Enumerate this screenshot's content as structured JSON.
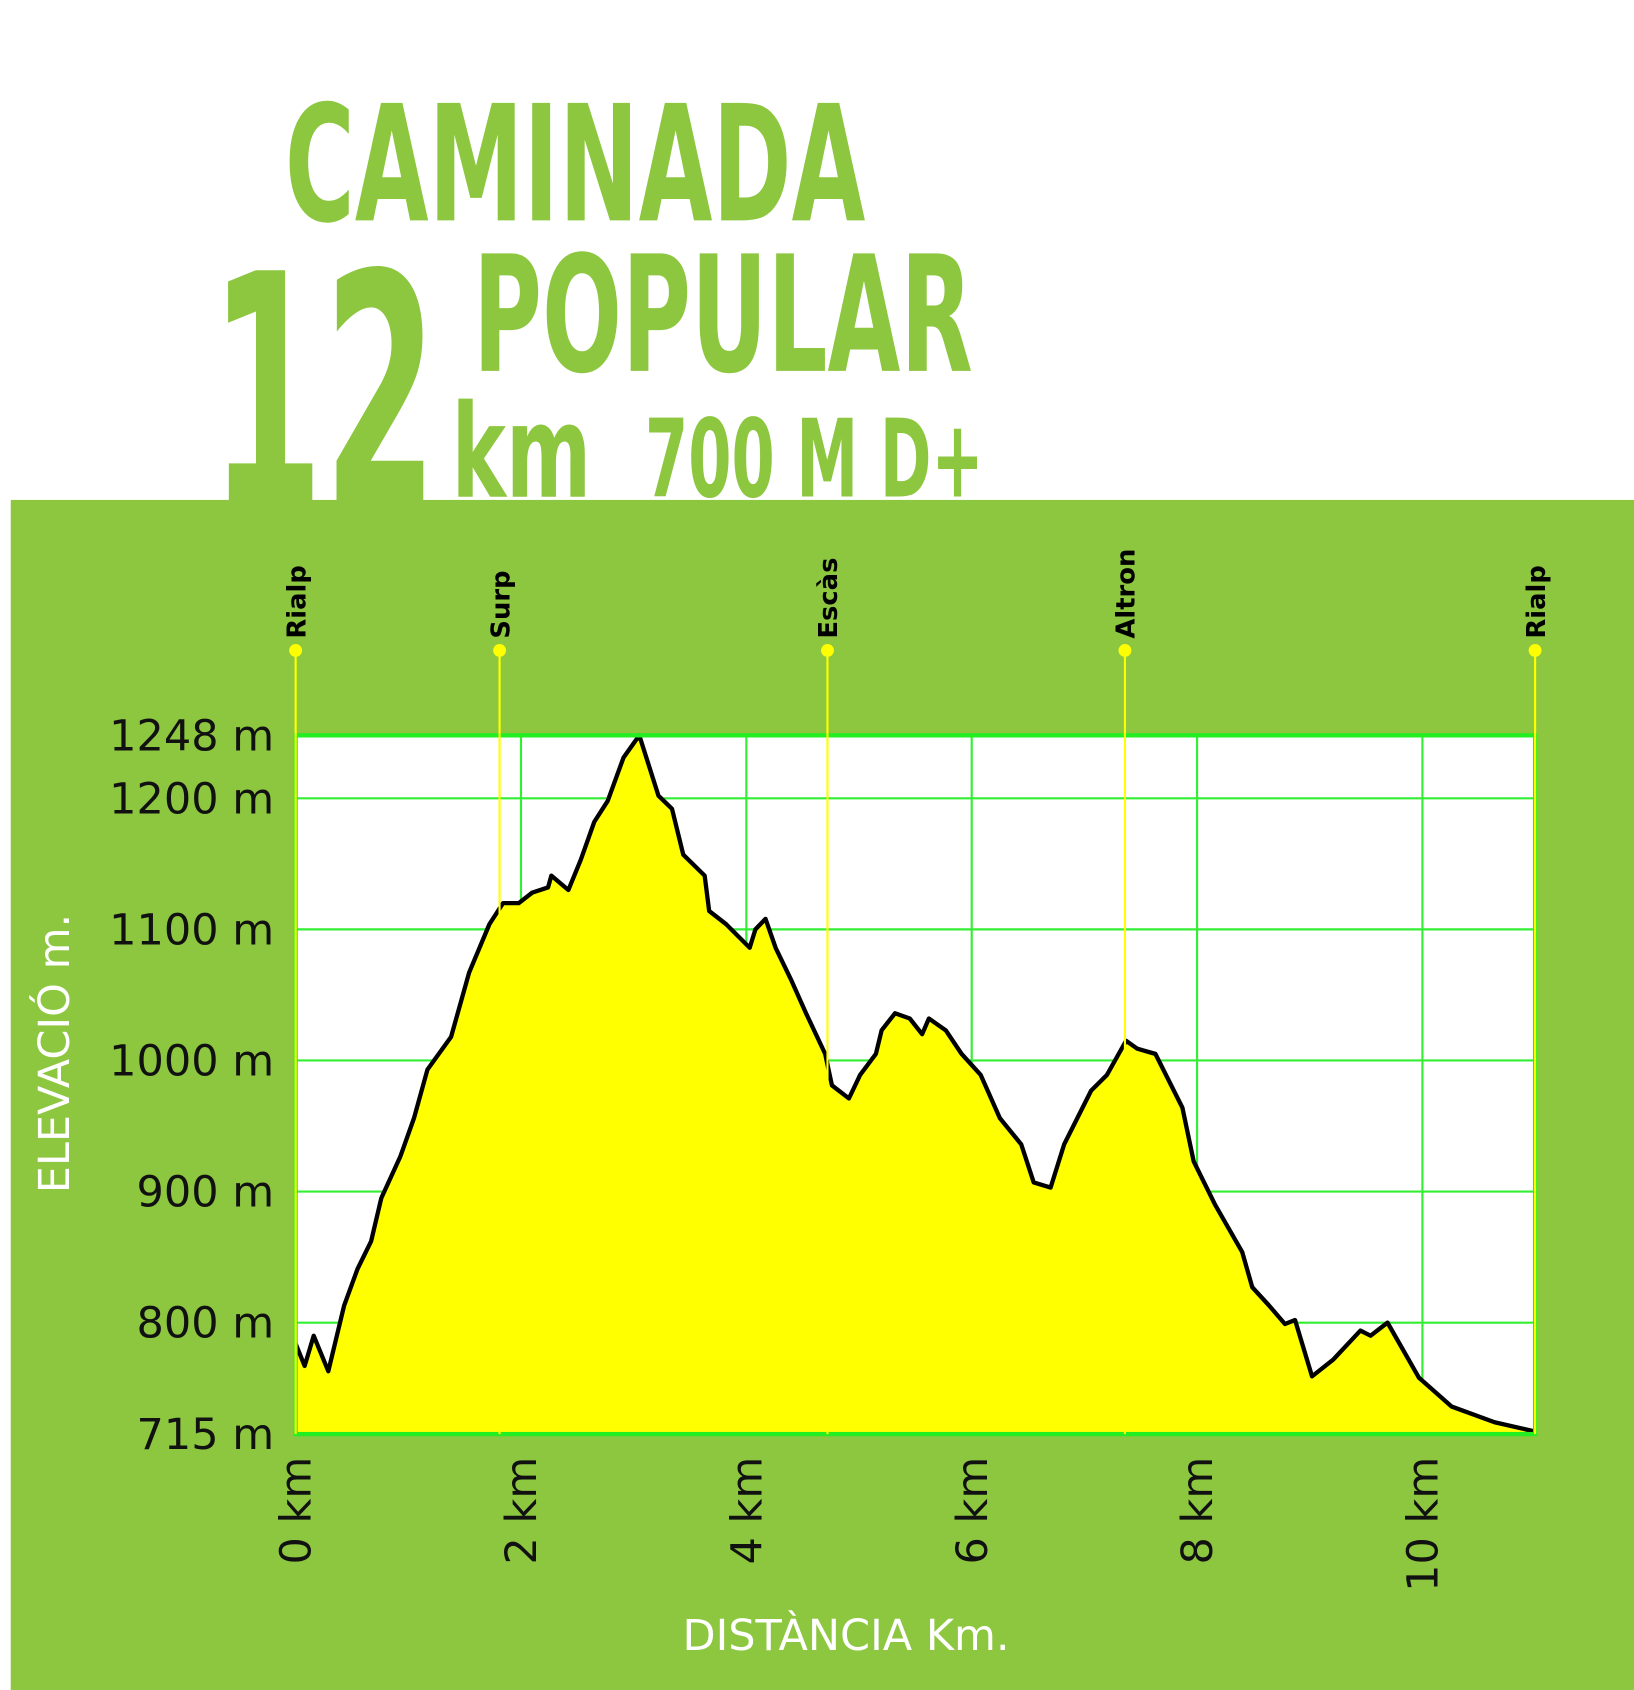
{
  "chart_data": {
    "type": "area",
    "title_lines": [
      "CAMINADA",
      "12",
      "POPULAR",
      "km",
      "700 M D+"
    ],
    "y_label": "ELEVACIÓ m.",
    "x_label": "DISTÀNCIA Km.",
    "xlim": [
      0,
      11
    ],
    "ylim": [
      715,
      1248
    ],
    "xticks": [
      {
        "value": 0,
        "label": "0 km"
      },
      {
        "value": 2,
        "label": "2 km"
      },
      {
        "value": 4,
        "label": "4 km"
      },
      {
        "value": 6,
        "label": "6 km"
      },
      {
        "value": 8,
        "label": "8 km"
      },
      {
        "value": 10,
        "label": "10 km"
      }
    ],
    "yticks": [
      {
        "value": 715,
        "label": "715 m"
      },
      {
        "value": 800,
        "label": "800 m"
      },
      {
        "value": 900,
        "label": "900 m"
      },
      {
        "value": 1000,
        "label": "1000 m"
      },
      {
        "value": 1100,
        "label": "1100 m"
      },
      {
        "value": 1200,
        "label": "1200 m"
      },
      {
        "value": 1248,
        "label": "1248 m"
      }
    ],
    "grid": true,
    "fill_color": "#ffff00",
    "line_color": "#000000",
    "x": [
      0,
      0.08,
      0.16,
      0.29,
      0.43,
      0.55,
      0.67,
      0.76,
      0.93,
      1.05,
      1.17,
      1.38,
      1.54,
      1.72,
      1.84,
      1.98,
      2.1,
      2.24,
      2.27,
      2.42,
      2.53,
      2.65,
      2.77,
      2.91,
      3.05,
      3.22,
      3.34,
      3.44,
      3.63,
      3.67,
      3.82,
      4.03,
      4.08,
      4.17,
      4.26,
      4.4,
      4.53,
      4.7,
      4.76,
      4.91,
      5.01,
      5.15,
      5.2,
      5.32,
      5.45,
      5.56,
      5.62,
      5.77,
      5.91,
      6.08,
      6.25,
      6.44,
      6.55,
      6.7,
      6.82,
      7.06,
      7.2,
      7.37,
      7.47,
      7.63,
      7.87,
      7.97,
      8.16,
      8.4,
      8.49,
      8.64,
      8.78,
      8.87,
      9.02,
      9.21,
      9.45,
      9.54,
      9.69,
      9.97,
      10.26,
      10.64,
      11
    ],
    "values": [
      784,
      767,
      790,
      763,
      813,
      841,
      862,
      895,
      927,
      956,
      993,
      1018,
      1067,
      1104,
      1120,
      1120,
      1128,
      1132,
      1141,
      1130,
      1153,
      1182,
      1198,
      1231,
      1248,
      1202,
      1192,
      1157,
      1141,
      1114,
      1104,
      1086,
      1100,
      1108,
      1086,
      1061,
      1036,
      1005,
      981,
      971,
      989,
      1005,
      1023,
      1036,
      1032,
      1020,
      1032,
      1023,
      1005,
      989,
      956,
      936,
      907,
      903,
      936,
      977,
      989,
      1015,
      1009,
      1005,
      964,
      923,
      890,
      854,
      827,
      813,
      799,
      802,
      759,
      772,
      794,
      790,
      800,
      758,
      736,
      724,
      717
    ],
    "waypoints": [
      {
        "label": "Rialp",
        "x": 0
      },
      {
        "label": "Surp",
        "x": 1.81
      },
      {
        "label": "Escàs",
        "x": 4.72
      },
      {
        "label": "Altron",
        "x": 7.36
      },
      {
        "label": "Rialp",
        "x": 11
      }
    ],
    "waypoint_color": "#ffff00"
  }
}
